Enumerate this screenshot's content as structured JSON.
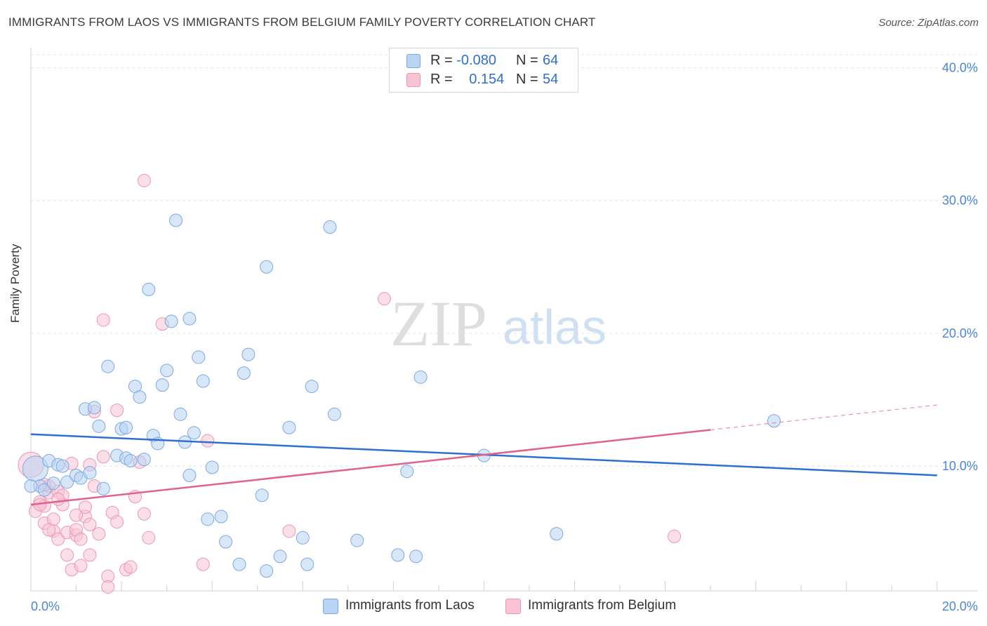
{
  "title": "IMMIGRANTS FROM LAOS VS IMMIGRANTS FROM BELGIUM FAMILY POVERTY CORRELATION CHART",
  "source": "Source: ZipAtlas.com",
  "watermark": {
    "zip": "ZIP",
    "atlas": "atlas"
  },
  "stats": [
    {
      "r_label": "R = ",
      "r_value": "-0.080",
      "n_label": "N = ",
      "n_value": "64"
    },
    {
      "r_label": "R = ",
      "r_value": "0.154",
      "n_label": "N = ",
      "n_value": "54"
    }
  ],
  "legend": [
    {
      "label": "Immigrants from Laos"
    },
    {
      "label": "Immigrants from Belgium"
    }
  ],
  "colors": {
    "laos_fill": "#b8d3f3",
    "laos_stroke": "#7aa9e2",
    "laos_line": "#2f6fcf",
    "belgium_fill": "#f8c4d5",
    "belgium_stroke": "#ee95b3",
    "belgium_line": "#e2628c",
    "tick_label": "#4a86d8"
  },
  "chart_data": {
    "type": "scatter",
    "title": "IMMIGRANTS FROM LAOS VS IMMIGRANTS FROM BELGIUM FAMILY POVERTY CORRELATION CHART",
    "xlabel": "",
    "ylabel": "Family Poverty",
    "xlim": [
      0,
      20.9
    ],
    "ylim": [
      0.6,
      41.5
    ],
    "x_tick_labels": [
      "0.0%",
      "20.0%"
    ],
    "y_tick_labels": [
      "10.0%",
      "20.0%",
      "30.0%",
      "40.0%"
    ],
    "y_ticks": [
      10,
      20,
      30,
      40
    ],
    "grid": true,
    "series": [
      {
        "name": "Immigrants from Laos",
        "r": -0.08,
        "n": 64,
        "trend": {
          "x": [
            0,
            20
          ],
          "y": [
            12.4,
            9.3
          ],
          "dashed_from": null
        },
        "points": [
          [
            0.1,
            9.8
          ],
          [
            0.2,
            8.5
          ],
          [
            0.3,
            8.2
          ],
          [
            0.4,
            10.4
          ],
          [
            0.5,
            8.7
          ],
          [
            0.6,
            10.1
          ],
          [
            0.7,
            10.0
          ],
          [
            0.8,
            8.8
          ],
          [
            1.0,
            9.3
          ],
          [
            1.1,
            9.1
          ],
          [
            1.3,
            9.5
          ],
          [
            1.2,
            14.3
          ],
          [
            1.4,
            14.4
          ],
          [
            1.5,
            13.0
          ],
          [
            1.6,
            8.3
          ],
          [
            1.7,
            17.5
          ],
          [
            1.9,
            10.8
          ],
          [
            2.0,
            12.8
          ],
          [
            2.1,
            10.6
          ],
          [
            2.1,
            12.9
          ],
          [
            2.2,
            10.4
          ],
          [
            2.3,
            16.0
          ],
          [
            2.4,
            15.2
          ],
          [
            2.5,
            10.5
          ],
          [
            2.6,
            23.3
          ],
          [
            2.7,
            12.3
          ],
          [
            2.8,
            11.7
          ],
          [
            2.9,
            16.1
          ],
          [
            3.0,
            17.2
          ],
          [
            3.1,
            20.9
          ],
          [
            3.2,
            28.5
          ],
          [
            3.3,
            13.9
          ],
          [
            3.4,
            11.8
          ],
          [
            3.5,
            21.1
          ],
          [
            3.5,
            9.3
          ],
          [
            3.6,
            12.5
          ],
          [
            3.7,
            18.2
          ],
          [
            3.8,
            16.4
          ],
          [
            3.9,
            6.0
          ],
          [
            4.0,
            9.9
          ],
          [
            4.2,
            6.2
          ],
          [
            4.3,
            4.3
          ],
          [
            4.6,
            2.6
          ],
          [
            4.7,
            17.0
          ],
          [
            4.8,
            18.4
          ],
          [
            5.1,
            7.8
          ],
          [
            5.2,
            25.0
          ],
          [
            5.2,
            2.1
          ],
          [
            5.5,
            3.2
          ],
          [
            5.7,
            12.9
          ],
          [
            6.0,
            4.6
          ],
          [
            6.1,
            2.6
          ],
          [
            6.2,
            16.0
          ],
          [
            6.6,
            28.0
          ],
          [
            6.7,
            13.9
          ],
          [
            7.2,
            4.4
          ],
          [
            8.1,
            3.3
          ],
          [
            8.3,
            9.6
          ],
          [
            8.5,
            3.2
          ],
          [
            8.6,
            16.7
          ],
          [
            10.0,
            10.8
          ],
          [
            11.6,
            4.9
          ],
          [
            16.4,
            13.4
          ],
          [
            0.0,
            8.5
          ]
        ]
      },
      {
        "name": "Immigrants from Belgium",
        "r": 0.154,
        "n": 54,
        "trend": {
          "x": [
            0,
            20
          ],
          "y": [
            7.1,
            14.6
          ],
          "dashed_from": 15.0
        },
        "points": [
          [
            0.0,
            10.1
          ],
          [
            0.1,
            6.6
          ],
          [
            0.2,
            7.3
          ],
          [
            0.3,
            7.0
          ],
          [
            0.3,
            5.7
          ],
          [
            0.4,
            8.0
          ],
          [
            0.4,
            8.5
          ],
          [
            0.5,
            6.0
          ],
          [
            0.5,
            5.1
          ],
          [
            0.6,
            8.1
          ],
          [
            0.6,
            4.5
          ],
          [
            0.7,
            7.8
          ],
          [
            0.7,
            7.1
          ],
          [
            0.8,
            5.0
          ],
          [
            0.8,
            3.3
          ],
          [
            0.9,
            2.2
          ],
          [
            0.9,
            10.2
          ],
          [
            1.0,
            4.8
          ],
          [
            1.0,
            5.2
          ],
          [
            1.1,
            2.5
          ],
          [
            1.1,
            4.5
          ],
          [
            1.2,
            6.2
          ],
          [
            1.2,
            6.9
          ],
          [
            1.3,
            5.6
          ],
          [
            1.3,
            10.1
          ],
          [
            1.3,
            3.3
          ],
          [
            1.4,
            8.5
          ],
          [
            1.4,
            14.1
          ],
          [
            1.5,
            4.9
          ],
          [
            1.6,
            10.7
          ],
          [
            1.6,
            21.0
          ],
          [
            1.7,
            1.7
          ],
          [
            1.7,
            0.9
          ],
          [
            1.8,
            6.5
          ],
          [
            1.9,
            5.8
          ],
          [
            1.9,
            14.2
          ],
          [
            2.1,
            2.2
          ],
          [
            2.2,
            2.4
          ],
          [
            2.3,
            7.7
          ],
          [
            2.4,
            10.3
          ],
          [
            2.5,
            6.4
          ],
          [
            2.5,
            31.5
          ],
          [
            2.6,
            4.6
          ],
          [
            2.9,
            20.7
          ],
          [
            3.8,
            2.6
          ],
          [
            3.9,
            11.9
          ],
          [
            5.7,
            5.1
          ],
          [
            7.8,
            22.6
          ],
          [
            14.2,
            4.7
          ],
          [
            0.2,
            7.1
          ],
          [
            0.4,
            5.2
          ],
          [
            0.6,
            7.5
          ],
          [
            1.0,
            6.3
          ],
          [
            0.3,
            8.6
          ]
        ]
      }
    ]
  }
}
